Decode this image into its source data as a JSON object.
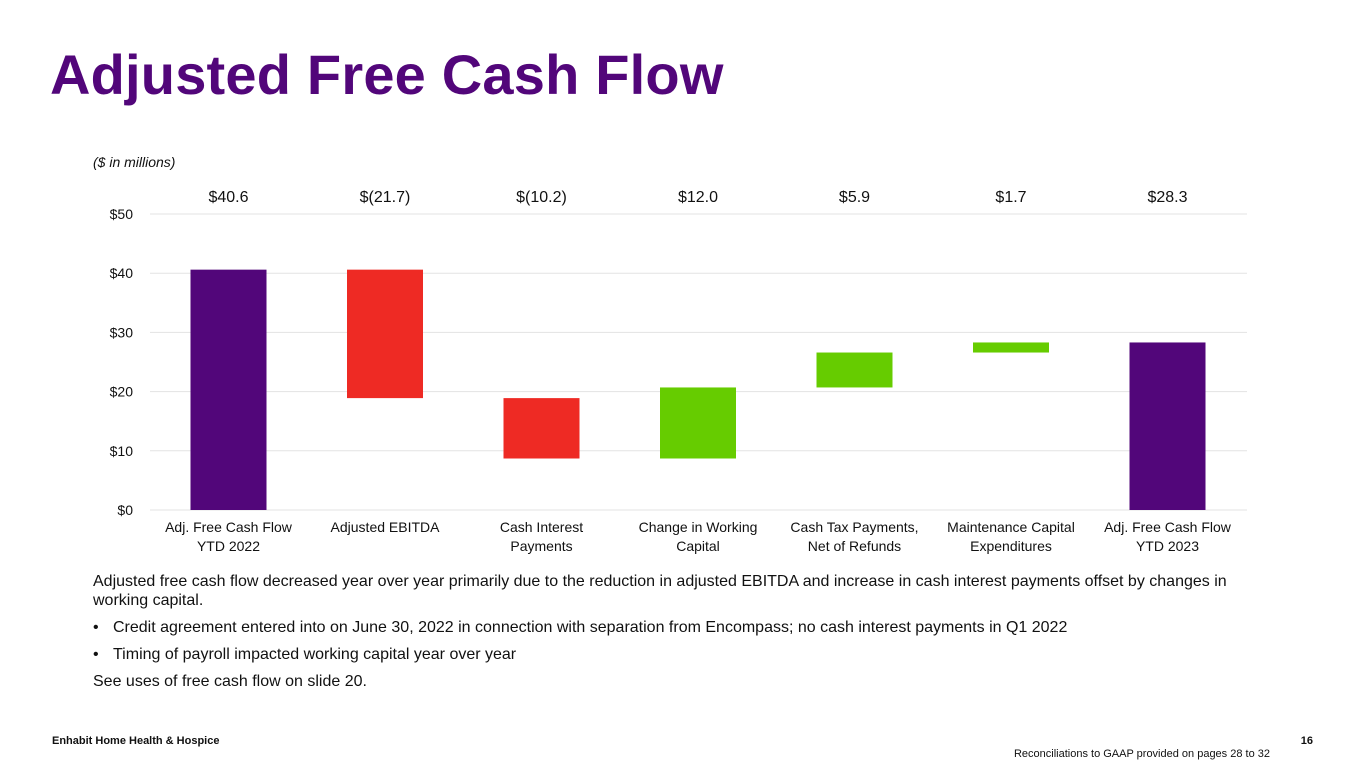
{
  "title": "Adjusted Free Cash Flow",
  "units_note": "($ in millions)",
  "chart_data": {
    "type": "bar",
    "subtype": "waterfall",
    "categories": [
      [
        "Adj. Free Cash Flow",
        "YTD 2022"
      ],
      [
        "Adjusted EBITDA"
      ],
      [
        "Cash Interest",
        "Payments"
      ],
      [
        "Change in Working",
        "Capital"
      ],
      [
        "Cash Tax Payments,",
        "Net of Refunds"
      ],
      [
        "Maintenance Capital",
        "Expenditures"
      ],
      [
        "Adj. Free Cash Flow",
        "YTD 2023"
      ]
    ],
    "values": [
      40.6,
      -21.7,
      -10.2,
      12.0,
      5.9,
      1.7,
      28.3
    ],
    "value_labels": [
      "$40.6",
      "$(21.7)",
      "$(10.2)",
      "$12.0",
      "$5.9",
      "$1.7",
      "$28.3"
    ],
    "bar_kinds": [
      "total",
      "decrease",
      "decrease",
      "increase",
      "increase",
      "increase",
      "total"
    ],
    "y_ticks": [
      0,
      10,
      20,
      30,
      40,
      50
    ],
    "y_tick_labels": [
      "$0",
      "$10",
      "$20",
      "$30",
      "$40",
      "$50"
    ],
    "ylim": [
      0,
      50
    ],
    "grid": true,
    "colors": {
      "total": "#52067a",
      "decrease": "#ee2a24",
      "increase": "#66cc00",
      "grid": "#e3e3e3"
    }
  },
  "commentary": {
    "summary": "Adjusted free cash flow decreased year over year primarily due to the reduction in adjusted EBITDA and increase in cash interest payments offset by changes in working capital.",
    "bullets": [
      "Credit agreement entered into on June 30, 2022 in connection with separation from Encompass; no cash interest payments in Q1 2022",
      "Timing of payroll impacted working capital year over year"
    ],
    "closing": "See uses of free cash flow on slide 20."
  },
  "footer": {
    "company": "Enhabit Home Health & Hospice",
    "page_number": "16",
    "note": "Reconciliations to GAAP provided on pages 28 to 32"
  }
}
